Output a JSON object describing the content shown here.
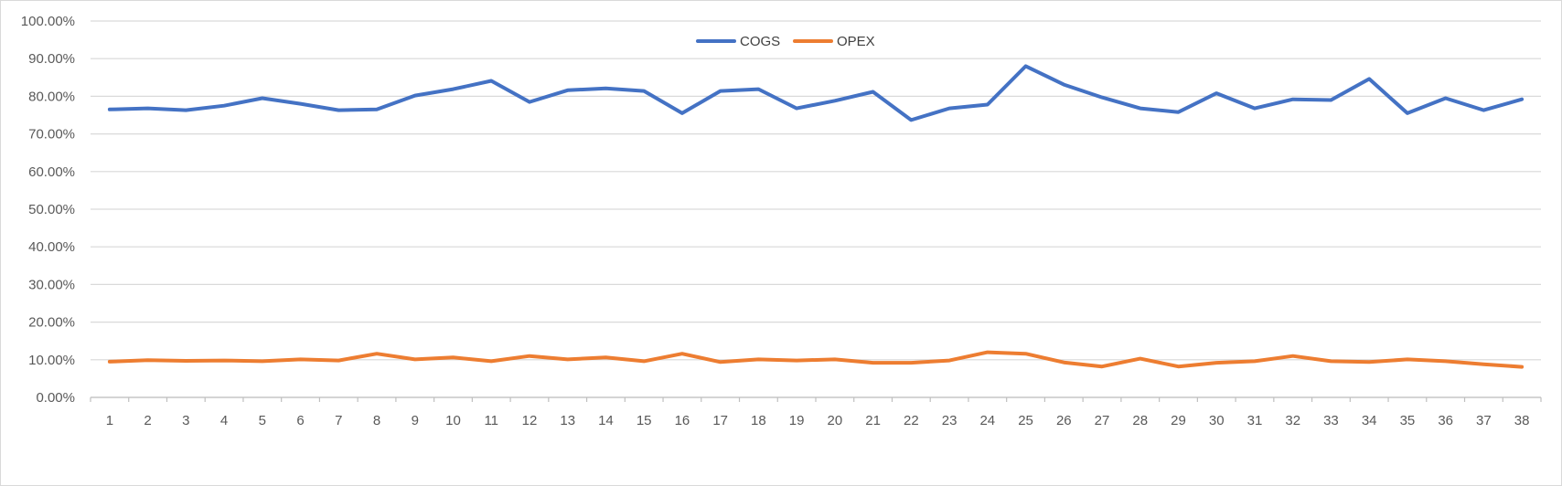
{
  "chart_data": {
    "type": "line",
    "title": "",
    "xlabel": "",
    "ylabel": "",
    "categories": [
      "1",
      "2",
      "3",
      "4",
      "5",
      "6",
      "7",
      "8",
      "9",
      "10",
      "11",
      "12",
      "13",
      "14",
      "15",
      "16",
      "17",
      "18",
      "19",
      "20",
      "21",
      "22",
      "23",
      "24",
      "25",
      "26",
      "27",
      "28",
      "29",
      "30",
      "31",
      "32",
      "33",
      "34",
      "35",
      "36",
      "37",
      "38"
    ],
    "ylim": [
      0,
      100
    ],
    "y_ticks": [
      0,
      10,
      20,
      30,
      40,
      50,
      60,
      70,
      80,
      90,
      100
    ],
    "y_tick_labels": [
      "0.00%",
      "10.00%",
      "20.00%",
      "30.00%",
      "40.00%",
      "50.00%",
      "60.00%",
      "70.00%",
      "80.00%",
      "90.00%",
      "100.00%"
    ],
    "grid": true,
    "legend_position": "top-center",
    "series": [
      {
        "name": "COGS",
        "color": "#4472C4",
        "values": [
          76.5,
          76.8,
          76.3,
          77.5,
          79.5,
          78.0,
          76.3,
          76.5,
          80.2,
          81.9,
          84.1,
          78.5,
          81.6,
          82.1,
          81.4,
          75.5,
          81.4,
          81.9,
          76.8,
          78.8,
          81.2,
          73.7,
          76.8,
          77.8,
          88.0,
          83.1,
          79.7,
          76.8,
          75.8,
          80.8,
          76.8,
          79.2,
          79.0,
          84.6,
          75.5,
          79.5,
          76.3,
          79.2
        ]
      },
      {
        "name": "OPEX",
        "color": "#ED7D31",
        "values": [
          9.5,
          9.9,
          9.7,
          9.8,
          9.6,
          10.1,
          9.8,
          11.6,
          10.1,
          10.6,
          9.6,
          11.0,
          10.1,
          10.6,
          9.6,
          11.6,
          9.4,
          10.1,
          9.8,
          10.1,
          9.2,
          9.2,
          9.8,
          12.0,
          11.6,
          9.3,
          8.2,
          10.3,
          8.2,
          9.2,
          9.6,
          11.0,
          9.6,
          9.4,
          10.1,
          9.6,
          8.8,
          8.1
        ]
      }
    ]
  }
}
